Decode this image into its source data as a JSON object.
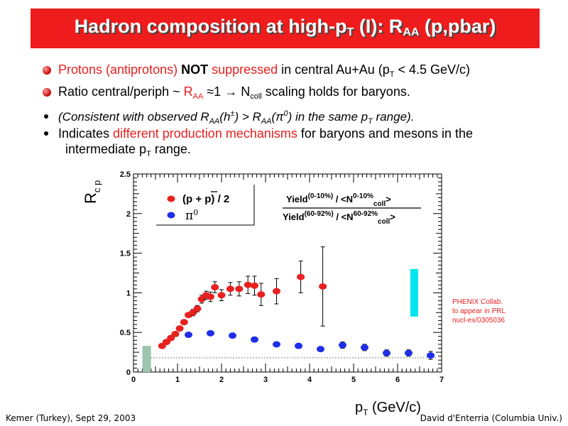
{
  "slide": {
    "title_pre": "Hadron composition at high-p",
    "title_sub_T": "T",
    "title_mid": " (I): R",
    "title_sub_AA": "AA",
    "title_post": " (p,pbar)",
    "bullet1_red1": "Protons (antiprotons) ",
    "bullet1_bold": "NOT",
    "bullet1_red2": " suppressed",
    "bullet1_rest": " in central Au+Au (p",
    "bullet1_sub": "T",
    "bullet1_end": " < 4.5 GeV/c)",
    "bullet2_a": "Ratio central/periph ~ ",
    "bullet2_raa": "R",
    "bullet2_raa_sub": "AA",
    "bullet2_b": " ≈1  →  N",
    "bullet2_sub": "coll",
    "bullet2_c": " scaling holds for baryons.",
    "sub1_a": "(Consistent with observed R",
    "sub1_sub1": "AA",
    "sub1_b": "(h",
    "sub1_sup1": "±",
    "sub1_c": ") > R",
    "sub1_sub2": "AA",
    "sub1_d": "(π",
    "sub1_sup2": "0",
    "sub1_e": ") in the same p",
    "sub1_sub3": "T",
    "sub1_f": " range).",
    "sub2_a": "Indicates ",
    "sub2_red": "different production mechanisms",
    "sub2_b": " for baryons and mesons in the",
    "sub2_c": "intermediate  p",
    "sub2_sub": "T",
    "sub2_d": " range.",
    "footer_left": "Kemer (Turkey), Sept 29, 2003",
    "footer_right": "David d'Enterria (Columbia Univ.)"
  },
  "chart_data": {
    "type": "scatter",
    "xlim": [
      0,
      7
    ],
    "ylim": [
      0,
      2.5
    ],
    "ylabel_main": "R",
    "ylabel_sub": "c p",
    "xlabel_main": "p",
    "xlabel_sub": "T",
    "xlabel_unit": " (GeV/c)",
    "x_ticks": [
      "0",
      "1",
      "2",
      "3",
      "4",
      "5",
      "6",
      "7"
    ],
    "y_ticks": [
      "0",
      "0.5",
      "1",
      "1.5",
      "2",
      "2.5"
    ],
    "y_tick_values": [
      0,
      0.5,
      1,
      1.5,
      2,
      2.5
    ],
    "legend": {
      "entry1": "(p + p) / 2",
      "entry2_symbol": "π",
      "entry2_sup": "0",
      "placement": "top-left"
    },
    "formula": {
      "num_yield": "Yield",
      "num_sup": "(0-10%)",
      "num_slash": " / <N",
      "num_nsup": "0-10%",
      "num_nsub": "coll",
      "num_end": ">",
      "den_yield": "Yield",
      "den_sup": "(60-92%)",
      "den_slash": " / <N",
      "den_nsup": "60-92%",
      "den_nsub": "coll",
      "den_end": ">"
    },
    "annotation_lines": [
      "PHENIX Collab.",
      "to appear in PRL",
      "nucl-ex/0305036"
    ],
    "colors": {
      "protons": "#e8211f",
      "pi0": "#1f2fe8",
      "cyan_band": "#00e5ee",
      "green_band": "#9cc4ae",
      "annotation": "#e8211f"
    },
    "series": [
      {
        "name": "(p + p) / 2",
        "points": [
          [
            0.65,
            0.33,
            0.02
          ],
          [
            0.75,
            0.38,
            0.02
          ],
          [
            0.85,
            0.43,
            0.02
          ],
          [
            0.95,
            0.48,
            0.03
          ],
          [
            1.05,
            0.55,
            0.03
          ],
          [
            1.15,
            0.63,
            0.03
          ],
          [
            1.25,
            0.72,
            0.03
          ],
          [
            1.35,
            0.75,
            0.04
          ],
          [
            1.45,
            0.8,
            0.04
          ],
          [
            1.55,
            0.92,
            0.05
          ],
          [
            1.65,
            0.97,
            0.05
          ],
          [
            1.75,
            0.95,
            0.06
          ],
          [
            1.85,
            1.07,
            0.07
          ],
          [
            2.0,
            0.97,
            0.07
          ],
          [
            2.2,
            1.05,
            0.08
          ],
          [
            2.4,
            1.05,
            0.09
          ],
          [
            2.6,
            1.1,
            0.11
          ],
          [
            2.75,
            1.09,
            0.12
          ],
          [
            2.9,
            0.98,
            0.14
          ],
          [
            3.25,
            1.02,
            0.16
          ],
          [
            3.8,
            1.2,
            0.2
          ],
          [
            4.3,
            1.08,
            0.5
          ]
        ]
      },
      {
        "name": "π0",
        "points": [
          [
            1.25,
            0.47,
            0.02
          ],
          [
            1.75,
            0.49,
            0.03
          ],
          [
            2.25,
            0.46,
            0.03
          ],
          [
            2.75,
            0.41,
            0.03
          ],
          [
            3.25,
            0.35,
            0.03
          ],
          [
            3.75,
            0.33,
            0.03
          ],
          [
            4.25,
            0.29,
            0.03
          ],
          [
            4.75,
            0.34,
            0.04
          ],
          [
            5.25,
            0.31,
            0.04
          ],
          [
            5.75,
            0.24,
            0.04
          ],
          [
            6.25,
            0.24,
            0.04
          ],
          [
            6.75,
            0.21,
            0.05
          ]
        ]
      }
    ],
    "cyan_band": {
      "x": 6.37,
      "y_low": 0.7,
      "y_high": 1.3
    },
    "green_band": {
      "x": 0.3,
      "y_low": 0.0,
      "y_high": 0.33
    },
    "dotted_line_y": 0.18
  }
}
